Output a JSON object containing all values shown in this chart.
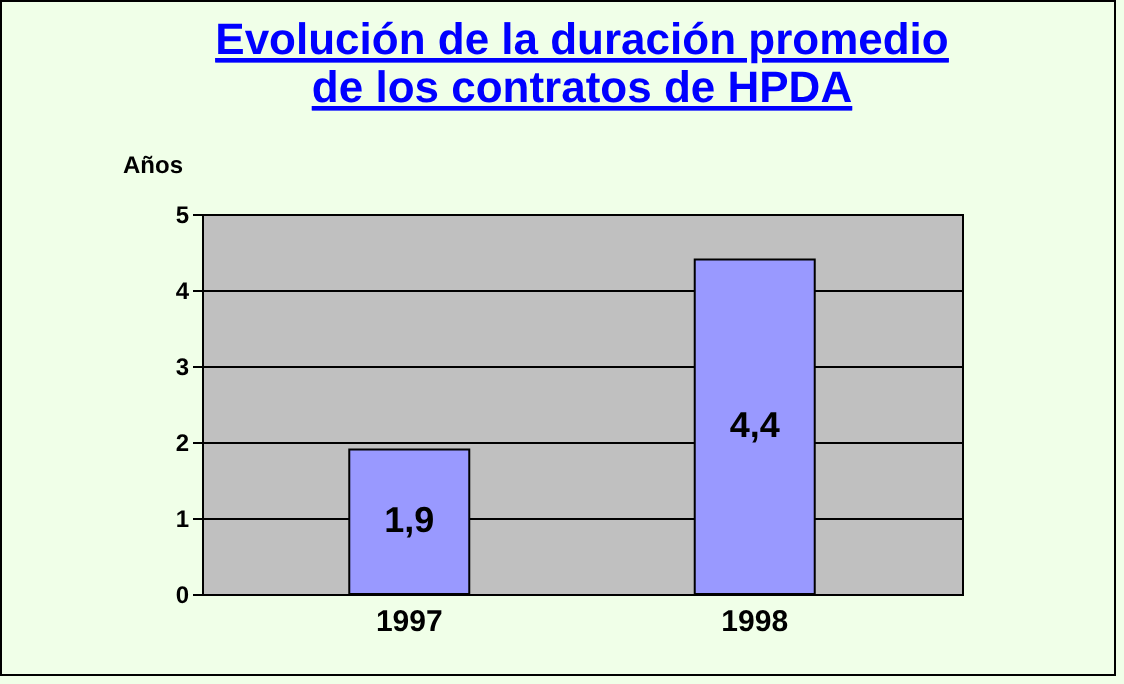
{
  "chart_data": {
    "type": "bar",
    "title": "Evolución de la duración promedio\nde los contratos de HPDA",
    "ylabel": "Años",
    "categories": [
      "1997",
      "1998"
    ],
    "values": [
      1.9,
      4.4
    ],
    "value_labels": [
      "1,9",
      "4,4"
    ],
    "color": "#9999ff",
    "ylim": [
      0,
      5
    ],
    "yticks": [
      0,
      1,
      2,
      3,
      4,
      5
    ],
    "grid": "y"
  }
}
